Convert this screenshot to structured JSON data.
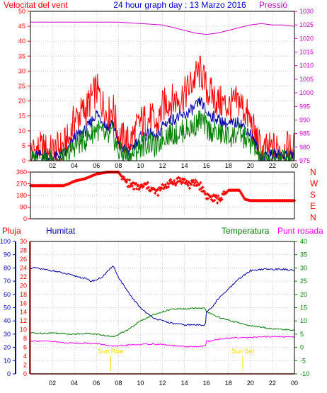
{
  "header": {
    "left_label": "Velocitat del vent",
    "title": "24 hour graph day : 13 Marzo 2016",
    "right_label": "Pressió"
  },
  "colors": {
    "wind_gust": "#ff0000",
    "wind_avg": "#0000aa",
    "wind_min": "#008000",
    "pressure": "#cc00cc",
    "direction": "#ff0000",
    "humidity": "#0000aa",
    "temperature": "#008000",
    "dewpoint": "#ff00ff",
    "rain": "#ff0000",
    "sun": "#ffd700"
  },
  "chart_data": [
    {
      "type": "line",
      "title": "Velocitat del vent / Pressió",
      "x_ticks": [
        "02",
        "04",
        "06",
        "08",
        "10",
        "12",
        "14",
        "16",
        "18",
        "20",
        "22",
        "00"
      ],
      "y_left_ticks": [
        "0",
        "5",
        "10",
        "15",
        "20",
        "25",
        "30",
        "35",
        "40",
        "45",
        "50"
      ],
      "y_right_ticks": [
        "975",
        "980",
        "985",
        "990",
        "995",
        "1000",
        "1005",
        "1010",
        "1015",
        "1020",
        "1025",
        "1030"
      ],
      "ylim_left": [
        0,
        50
      ],
      "ylim_right": [
        975,
        1030
      ],
      "grid": true,
      "series": [
        {
          "name": "gust",
          "axis": "left",
          "x": [
            0,
            1,
            2,
            3,
            3.5,
            4,
            5,
            6,
            7,
            7.5,
            8,
            9,
            10,
            11,
            11.5,
            12,
            12.5,
            13,
            14,
            15,
            15.5,
            16,
            16.5,
            17,
            18,
            19,
            20,
            20.5,
            21,
            22,
            23,
            24
          ],
          "values": [
            3,
            4,
            3,
            5,
            7,
            14,
            17,
            24,
            15,
            18,
            8,
            6,
            13,
            14,
            11,
            18,
            20,
            20,
            22,
            28,
            30,
            24,
            22,
            20,
            18,
            20,
            13,
            8,
            3,
            4,
            4,
            4
          ]
        },
        {
          "name": "average",
          "axis": "left",
          "x": [
            0,
            1,
            2,
            3,
            3.5,
            4,
            5,
            6,
            7,
            7.5,
            8,
            9,
            10,
            11,
            11.5,
            12,
            12.5,
            13,
            14,
            15,
            15.5,
            16,
            16.5,
            17,
            18,
            19,
            20,
            20.5,
            21,
            22,
            23,
            24
          ],
          "values": [
            1,
            2,
            1,
            2,
            4,
            8,
            10,
            16,
            11,
            13,
            5,
            3,
            8,
            9,
            7,
            12,
            13,
            14,
            15,
            18,
            20,
            16,
            15,
            14,
            12,
            13,
            9,
            5,
            1,
            2,
            2,
            2
          ]
        },
        {
          "name": "minimum",
          "axis": "left",
          "x": [
            0,
            1,
            2,
            3,
            3.5,
            4,
            5,
            6,
            7,
            7.5,
            8,
            9,
            10,
            11,
            11.5,
            12,
            12.5,
            13,
            14,
            15,
            15.5,
            16,
            16.5,
            17,
            18,
            19,
            20,
            20.5,
            21,
            22,
            23,
            24
          ],
          "values": [
            0,
            0,
            0,
            0,
            2,
            5,
            7,
            11,
            7,
            9,
            3,
            1,
            5,
            6,
            4,
            8,
            9,
            9,
            10,
            12,
            14,
            11,
            10,
            9,
            8,
            9,
            6,
            3,
            0,
            0,
            1,
            1
          ]
        },
        {
          "name": "pressure",
          "axis": "right",
          "x": [
            0,
            2,
            4,
            6,
            8,
            10,
            12,
            13,
            14,
            15,
            16,
            17,
            18,
            19,
            20,
            21,
            22,
            23,
            24
          ],
          "values": [
            1026,
            1026,
            1026,
            1026,
            1026,
            1025.5,
            1025,
            1024,
            1023,
            1022,
            1021.5,
            1022,
            1023,
            1024,
            1025,
            1025.5,
            1025,
            1025,
            1024.5
          ]
        }
      ]
    },
    {
      "type": "scatter",
      "title": "Direcció del vent",
      "x_ticks": [
        "02",
        "04",
        "06",
        "08",
        "10",
        "12",
        "14",
        "16",
        "18",
        "20",
        "22",
        "00"
      ],
      "y_ticks": [
        "360",
        "270",
        "180",
        "90",
        "0"
      ],
      "y_right_labels": [
        "N",
        "W",
        "S",
        "E",
        "N"
      ],
      "ylim": [
        0,
        360
      ],
      "grid": true,
      "series": [
        {
          "name": "direction",
          "x": [
            0,
            1,
            2,
            3,
            3.5,
            4,
            5,
            6,
            7,
            8,
            8.5,
            9,
            9.5,
            10,
            10.5,
            11,
            11.5,
            12,
            12.5,
            13,
            13.5,
            14,
            14.5,
            15,
            15.5,
            16,
            16.5,
            17,
            17.5,
            18,
            19,
            19.5,
            20,
            21,
            22,
            23,
            24
          ],
          "values": [
            255,
            255,
            255,
            255,
            270,
            290,
            310,
            345,
            360,
            360,
            300,
            270,
            250,
            240,
            260,
            230,
            200,
            240,
            270,
            280,
            300,
            290,
            260,
            280,
            250,
            180,
            160,
            150,
            170,
            220,
            220,
            150,
            140,
            140,
            140,
            140,
            140
          ]
        }
      ]
    },
    {
      "type": "line",
      "title": "Pluja / Humitat / Temperatura / Punt rosada",
      "x_ticks": [
        "02",
        "04",
        "06",
        "08",
        "10",
        "12",
        "14",
        "16",
        "18",
        "20",
        "22",
        "00"
      ],
      "y_rain_ticks": [
        "0",
        "2",
        "4",
        "6",
        "8",
        "10",
        "12",
        "14",
        "16",
        "18",
        "20",
        "22",
        "24",
        "26",
        "28",
        "30"
      ],
      "y_humidity_ticks": [
        "0",
        "10",
        "20",
        "30",
        "40",
        "50",
        "60",
        "70",
        "80",
        "90",
        "100"
      ],
      "y_temp_ticks": [
        "-10",
        "-5",
        "0",
        "5",
        "10",
        "15",
        "20",
        "25",
        "30",
        "35",
        "40"
      ],
      "ylim_humidity": [
        0,
        100
      ],
      "ylim_temp": [
        -10,
        40
      ],
      "grid": true,
      "annotations": [
        {
          "label": "Sun Rise",
          "x": 7.3
        },
        {
          "label": "Sun Set",
          "x": 19.3
        }
      ],
      "series": [
        {
          "name": "humidity",
          "axis": "humidity",
          "x": [
            0,
            0.5,
            1,
            2,
            3,
            4,
            5,
            5.5,
            6,
            6.5,
            7,
            7.5,
            8,
            9,
            10,
            11,
            12,
            13,
            14,
            15,
            15.9,
            16,
            16.5,
            17,
            18,
            19,
            20,
            21,
            22,
            23,
            24
          ],
          "values": [
            80,
            80,
            79,
            78,
            76,
            74,
            72,
            70,
            71,
            73,
            77,
            82,
            73,
            60,
            50,
            43,
            40,
            38,
            37,
            37,
            37,
            47,
            50,
            56,
            64,
            72,
            78,
            79,
            79,
            79,
            78
          ]
        },
        {
          "name": "temperature",
          "axis": "temp",
          "x": [
            0,
            1,
            2,
            3,
            4,
            5,
            6,
            7,
            7.5,
            8,
            9,
            10,
            11,
            12,
            13,
            14,
            15,
            15.9,
            16,
            17,
            18,
            19,
            20,
            21,
            22,
            23,
            24
          ],
          "values": [
            5.5,
            5.3,
            5.5,
            5.2,
            5,
            5.3,
            5,
            4.3,
            4,
            5,
            7,
            10,
            12,
            13.5,
            14.5,
            14.5,
            14.8,
            14.8,
            13.5,
            11.5,
            10.2,
            9.2,
            8.2,
            7.6,
            7,
            6.8,
            6.5
          ]
        },
        {
          "name": "dewpoint",
          "axis": "temp",
          "x": [
            0,
            1,
            2,
            3,
            4,
            5,
            6,
            7,
            7.5,
            8,
            9,
            10,
            11,
            12,
            13,
            14,
            15,
            15.9,
            16,
            17,
            18,
            19,
            20,
            21,
            22,
            23,
            24
          ],
          "values": [
            2.5,
            2.4,
            2.2,
            1.8,
            1.6,
            1.6,
            1.4,
            0.8,
            0.4,
            0.5,
            0.9,
            1.1,
            1.3,
            1.1,
            0.6,
            0.3,
            0.3,
            0.5,
            2.2,
            3,
            3.5,
            3.8,
            3.7,
            4,
            4.1,
            4,
            4
          ]
        },
        {
          "name": "rain",
          "axis": "rain",
          "x": [
            0,
            24
          ],
          "values": [
            0,
            0
          ]
        }
      ]
    }
  ],
  "labels": {
    "direction_right": [
      "N",
      "W",
      "S",
      "E",
      "N"
    ],
    "lower": {
      "pluja": "Pluja",
      "humitat": "Humitat",
      "temperatura": "Temperatura",
      "punt_rosada": "Punt rosada",
      "sun_rise": "Sun Rise",
      "sun_set": "Sun Set"
    }
  }
}
